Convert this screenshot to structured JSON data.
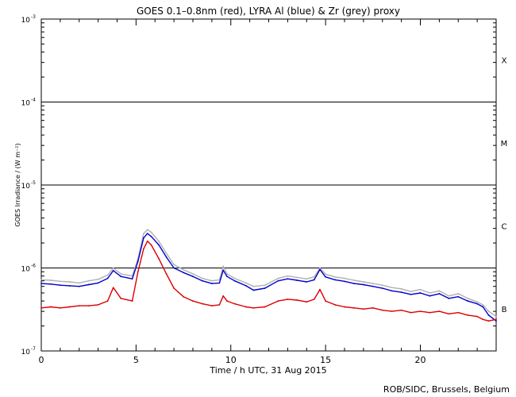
{
  "chart_data": {
    "type": "line",
    "title": "GOES 0.1–0.8nm (red), LYRA Al (blue) & Zr (grey) proxy",
    "xlabel": "Time / h UTC, 31 Aug 2015",
    "ylabel": "GOES Irradiance / (W m⁻²)",
    "credit": "ROB/SIDC, Brussels, Belgium",
    "xlim": [
      0,
      24
    ],
    "ylim": [
      1e-07,
      0.001
    ],
    "yscale": "log",
    "x_ticks": [
      0,
      5,
      10,
      15,
      20
    ],
    "x_tick_labels": [
      "0",
      "5",
      "10",
      "15",
      "20"
    ],
    "y_tick_labels": [
      {
        "base": "10",
        "exp": "-7",
        "value": 1e-07
      },
      {
        "base": "10",
        "exp": "-6",
        "value": 1e-06
      },
      {
        "base": "10",
        "exp": "-5",
        "value": 1e-05
      },
      {
        "base": "10",
        "exp": "-4",
        "value": 0.0001
      },
      {
        "base": "10",
        "exp": "-3",
        "value": 0.001
      }
    ],
    "class_lines": [
      1e-06,
      1e-05,
      0.0001
    ],
    "class_labels": [
      {
        "label": "B",
        "value": 3.2e-07
      },
      {
        "label": "C",
        "value": 3.2e-06
      },
      {
        "label": "M",
        "value": 3.2e-05
      },
      {
        "label": "X",
        "value": 0.00032
      }
    ],
    "series": [
      {
        "color": "#b0b0b0",
        "x": [
          0,
          0.5,
          1,
          1.5,
          2,
          2.5,
          3,
          3.5,
          3.8,
          4.2,
          4.8,
          5.1,
          5.4,
          5.6,
          5.8,
          6.2,
          6.6,
          7,
          7.5,
          8,
          8.5,
          9,
          9.4,
          9.6,
          9.8,
          10.2,
          10.8,
          11.2,
          11.8,
          12.5,
          13,
          13.5,
          14,
          14.4,
          14.7,
          15,
          15.5,
          16,
          16.5,
          17,
          17.5,
          18,
          18.5,
          19,
          19.5,
          20,
          20.5,
          21,
          21.5,
          22,
          22.5,
          23,
          23.3,
          23.6,
          24
        ],
        "y": [
          7.2e-07,
          7.1e-07,
          6.9e-07,
          6.8e-07,
          6.6e-07,
          7e-07,
          7.3e-07,
          8.2e-07,
          1e-06,
          8.5e-07,
          8e-07,
          1.3e-06,
          2.6e-06,
          2.9e-06,
          2.7e-06,
          2.1e-06,
          1.5e-06,
          1.1e-06,
          9.5e-07,
          8.5e-07,
          7.5e-07,
          7e-07,
          7.2e-07,
          1.05e-06,
          8.5e-07,
          7.5e-07,
          6.6e-07,
          6e-07,
          6.2e-07,
          7.5e-07,
          8e-07,
          7.7e-07,
          7.4e-07,
          7.8e-07,
          1e-06,
          8.4e-07,
          7.8e-07,
          7.5e-07,
          7.1e-07,
          6.8e-07,
          6.5e-07,
          6.2e-07,
          5.8e-07,
          5.6e-07,
          5.2e-07,
          5.5e-07,
          5e-07,
          5.3e-07,
          4.6e-07,
          4.9e-07,
          4.3e-07,
          3.9e-07,
          3.6e-07,
          3e-07,
          2.6e-07
        ]
      },
      {
        "color": "#0000cc",
        "x": [
          0,
          0.5,
          1,
          1.5,
          2,
          2.5,
          3,
          3.5,
          3.8,
          4.2,
          4.8,
          5.1,
          5.4,
          5.6,
          5.8,
          6.2,
          6.6,
          7,
          7.5,
          8,
          8.5,
          9,
          9.4,
          9.6,
          9.8,
          10.2,
          10.8,
          11.2,
          11.8,
          12.5,
          13,
          13.5,
          14,
          14.4,
          14.7,
          15,
          15.5,
          16,
          16.5,
          17,
          17.5,
          18,
          18.5,
          19,
          19.5,
          20,
          20.5,
          21,
          21.5,
          22,
          22.5,
          23,
          23.3,
          23.6,
          24
        ],
        "y": [
          6.5e-07,
          6.4e-07,
          6.2e-07,
          6.1e-07,
          6e-07,
          6.3e-07,
          6.6e-07,
          7.5e-07,
          9.3e-07,
          7.9e-07,
          7.4e-07,
          1.2e-06,
          2.3e-06,
          2.6e-06,
          2.4e-06,
          1.9e-06,
          1.35e-06,
          1e-06,
          8.8e-07,
          7.9e-07,
          7e-07,
          6.5e-07,
          6.6e-07,
          9.4e-07,
          7.9e-07,
          7e-07,
          6.1e-07,
          5.4e-07,
          5.7e-07,
          7e-07,
          7.4e-07,
          7.1e-07,
          6.8e-07,
          7.2e-07,
          9.6e-07,
          7.8e-07,
          7.2e-07,
          6.9e-07,
          6.5e-07,
          6.3e-07,
          6e-07,
          5.7e-07,
          5.3e-07,
          5.1e-07,
          4.8e-07,
          5e-07,
          4.6e-07,
          4.9e-07,
          4.3e-07,
          4.5e-07,
          4e-07,
          3.7e-07,
          3.4e-07,
          2.7e-07,
          2.3e-07
        ]
      },
      {
        "color": "#dd0000",
        "x": [
          0,
          0.5,
          1,
          1.5,
          2,
          2.5,
          3,
          3.5,
          3.8,
          4.2,
          4.8,
          5.1,
          5.4,
          5.6,
          5.8,
          6.2,
          6.6,
          7,
          7.5,
          8,
          8.5,
          9,
          9.4,
          9.6,
          9.8,
          10.2,
          10.8,
          11.2,
          11.8,
          12.5,
          13,
          13.5,
          14,
          14.4,
          14.7,
          15,
          15.5,
          16,
          16.5,
          17,
          17.5,
          18,
          18.5,
          19,
          19.5,
          20,
          20.5,
          21,
          21.5,
          22,
          22.5,
          23,
          23.3,
          23.6,
          24
        ],
        "y": [
          3.3e-07,
          3.4e-07,
          3.3e-07,
          3.4e-07,
          3.5e-07,
          3.5e-07,
          3.6e-07,
          4e-07,
          5.8e-07,
          4.3e-07,
          4e-07,
          9e-07,
          1.7e-06,
          2.1e-06,
          1.9e-06,
          1.3e-06,
          8.5e-07,
          5.7e-07,
          4.5e-07,
          4e-07,
          3.7e-07,
          3.5e-07,
          3.6e-07,
          4.6e-07,
          4e-07,
          3.7e-07,
          3.4e-07,
          3.3e-07,
          3.4e-07,
          4e-07,
          4.2e-07,
          4.1e-07,
          3.9e-07,
          4.2e-07,
          5.5e-07,
          4e-07,
          3.6e-07,
          3.4e-07,
          3.3e-07,
          3.2e-07,
          3.3e-07,
          3.1e-07,
          3e-07,
          3.1e-07,
          2.9e-07,
          3e-07,
          2.9e-07,
          3e-07,
          2.8e-07,
          2.9e-07,
          2.7e-07,
          2.6e-07,
          2.4e-07,
          2.3e-07,
          2.4e-07
        ]
      }
    ]
  }
}
